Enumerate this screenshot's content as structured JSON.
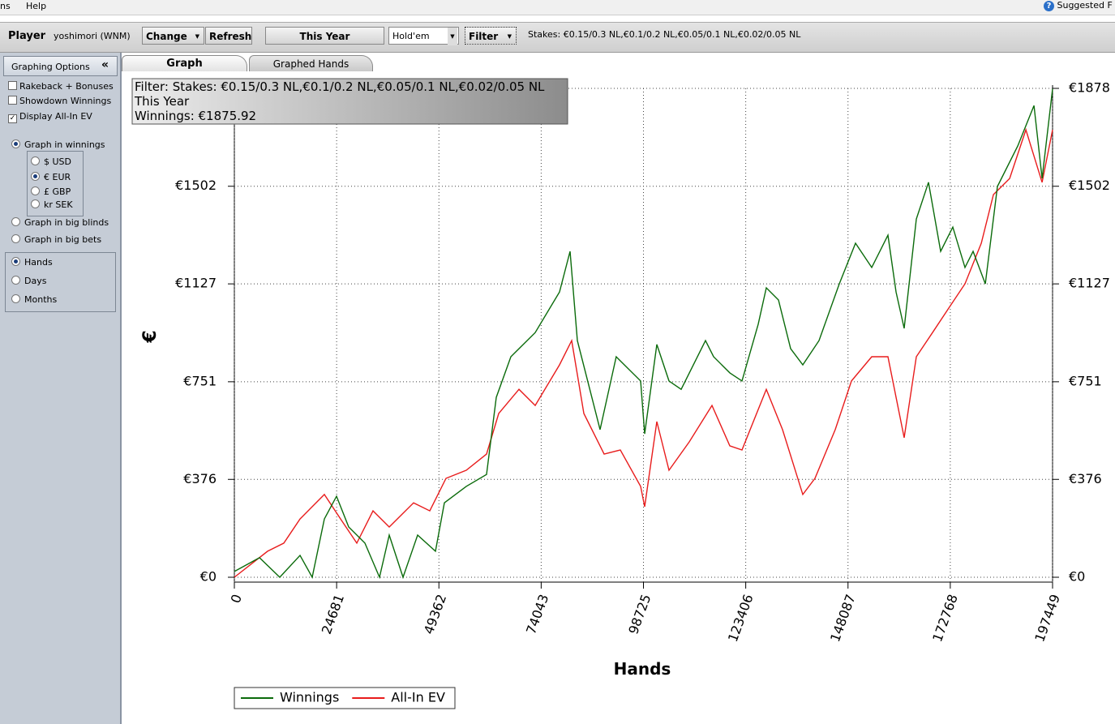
{
  "menu": {
    "items": [
      "ns",
      "Help"
    ],
    "help_link": "Suggested F"
  },
  "toolbar": {
    "player_label": "Player",
    "player": "yoshimori (WNM)",
    "change": "Change",
    "refresh": "Refresh",
    "period": "This Year",
    "game": "Hold'em",
    "filter": "Filter",
    "stakes": "Stakes: €0.15/0.3 NL,€0.1/0.2 NL,€0.05/0.1 NL,€0.02/0.05 NL"
  },
  "sidebar": {
    "title": "Graphing Options",
    "collapse": "«",
    "checkboxes": [
      "Rakeback + Bonuses",
      "Showdown Winnings",
      "Display All-In EV"
    ],
    "graph_modes": [
      "Graph in winnings",
      "Graph in big blinds",
      "Graph in big bets"
    ],
    "currencies": [
      "$ USD",
      "€ EUR",
      "£ GBP",
      "kr SEK"
    ],
    "x_modes": [
      "Hands",
      "Days",
      "Months"
    ]
  },
  "tabs": [
    "Graph",
    "Graphed Hands"
  ],
  "chart_data": {
    "type": "line",
    "info_box": [
      "Filter: Stakes: €0.15/0.3 NL,€0.1/0.2 NL,€0.05/0.1 NL,€0.02/0.05 NL",
      "This Year",
      "Winnings: €1875.92"
    ],
    "xlabel": "Hands",
    "ylabel": "€",
    "xlim": [
      0,
      197449
    ],
    "xticks": [
      0,
      24681,
      49362,
      74043,
      98725,
      123406,
      148087,
      172768,
      197449
    ],
    "ylim": [
      0,
      1878
    ],
    "yticks": [
      {
        "value": 0,
        "label": "€0"
      },
      {
        "value": 376,
        "label": "€376"
      },
      {
        "value": 751,
        "label": "€751"
      },
      {
        "value": 1127,
        "label": "€1127"
      },
      {
        "value": 1502,
        "label": "€1502"
      },
      {
        "value": 1878,
        "label": "€1878"
      }
    ],
    "y2lim": [
      0,
      1878
    ],
    "y2ticks": [
      {
        "value": 0,
        "label": "€0"
      },
      {
        "value": 376,
        "label": "€376"
      },
      {
        "value": 751,
        "label": "€751"
      },
      {
        "value": 1127,
        "label": "€1127"
      },
      {
        "value": 1502,
        "label": "€1502"
      },
      {
        "value": 1878,
        "label": "€1878"
      }
    ],
    "grid": true,
    "series": [
      {
        "name": "Winnings",
        "color": "#0b6b0b",
        "x": [
          0,
          6067,
          10959,
          15852,
          18787,
          21723,
          24658,
          27594,
          31508,
          35030,
          37379,
          40706,
          44228,
          48534,
          50686,
          55970,
          60862,
          63211,
          66733,
          72604,
          78475,
          81019,
          82781,
          88260,
          92153,
          98043,
          99022,
          101957,
          104893,
          107828,
          113699,
          115656,
          119570,
          122506,
          126420,
          128377,
          131312,
          134247,
          137183,
          141097,
          145990,
          149904,
          153818,
          157732,
          159689,
          161646,
          164582,
          167518,
          170453,
          173389,
          176324,
          178281,
          181217,
          184152,
          189045,
          192959,
          194916,
          197449
        ],
        "values": [
          22,
          75,
          0,
          84,
          0,
          224,
          311,
          193,
          131,
          0,
          162,
          0,
          162,
          100,
          286,
          349,
          395,
          691,
          847,
          940,
          1096,
          1252,
          909,
          567,
          847,
          754,
          551,
          894,
          754,
          722,
          909,
          847,
          785,
          754,
          972,
          1112,
          1065,
          878,
          816,
          909,
          1127,
          1283,
          1190,
          1314,
          1096,
          956,
          1376,
          1517,
          1252,
          1345,
          1190,
          1252,
          1127,
          1501,
          1657,
          1812,
          1532,
          1876
        ]
      },
      {
        "name": "All-In EV",
        "color": "#e81c1c",
        "x": [
          0,
          8024,
          11938,
          15852,
          21723,
          25637,
          29551,
          33465,
          37379,
          43250,
          47164,
          51078,
          55970,
          60862,
          63798,
          68690,
          72604,
          78475,
          81411,
          84346,
          89239,
          93153,
          98043,
          99022,
          101957,
          104893,
          109785,
          115265,
          119570,
          122506,
          128377,
          132291,
          137183,
          140119,
          145011,
          148925,
          153818,
          157732,
          161646,
          164582,
          168496,
          172410,
          176324,
          180239,
          183174,
          187088,
          191002,
          194916,
          197449
        ],
        "values": [
          0,
          100,
          131,
          224,
          318,
          224,
          131,
          255,
          193,
          286,
          255,
          380,
          411,
          473,
          629,
          722,
          660,
          816,
          909,
          629,
          473,
          489,
          349,
          271,
          598,
          411,
          520,
          660,
          505,
          489,
          722,
          567,
          318,
          380,
          567,
          754,
          847,
          847,
          536,
          847,
          940,
          1034,
          1127,
          1283,
          1470,
          1532,
          1719,
          1517,
          1719
        ]
      }
    ]
  }
}
